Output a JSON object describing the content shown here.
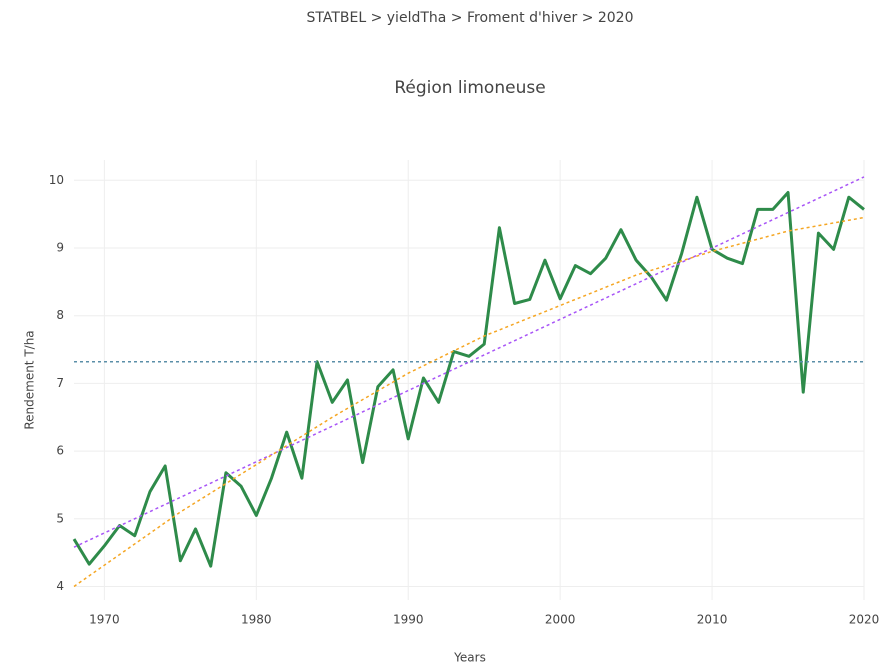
{
  "breadcrumb": "STATBEL > yieldTha > Froment d'hiver > 2020",
  "chart_data": {
    "type": "line",
    "title": "Région limoneuse",
    "x_label": "Years",
    "y_label": "Rendement T/ha",
    "x": [
      1968,
      1969,
      1970,
      1971,
      1972,
      1973,
      1974,
      1975,
      1976,
      1977,
      1978,
      1979,
      1980,
      1981,
      1982,
      1983,
      1984,
      1985,
      1986,
      1987,
      1988,
      1989,
      1990,
      1991,
      1992,
      1993,
      1994,
      1995,
      1996,
      1997,
      1998,
      1999,
      2000,
      2001,
      2002,
      2003,
      2004,
      2005,
      2006,
      2007,
      2008,
      2009,
      2010,
      2011,
      2012,
      2013,
      2014,
      2015,
      2016,
      2017,
      2018,
      2019,
      2020
    ],
    "series": [
      {
        "color": "#2e8b4a",
        "width": 3,
        "dash": false,
        "values": [
          4.7,
          4.33,
          4.6,
          4.9,
          4.75,
          5.4,
          5.78,
          4.38,
          4.85,
          4.3,
          5.68,
          5.48,
          5.05,
          5.6,
          6.28,
          5.6,
          7.32,
          6.72,
          7.05,
          5.83,
          6.95,
          7.2,
          6.18,
          7.08,
          6.72,
          7.47,
          7.4,
          7.58,
          9.3,
          8.18,
          8.24,
          8.82,
          8.25,
          8.74,
          8.62,
          8.85,
          9.27,
          8.82,
          8.57,
          8.23,
          8.92,
          9.75,
          8.98,
          8.85,
          8.77,
          9.57,
          9.57,
          9.82,
          6.87,
          9.22,
          8.98,
          9.75,
          9.57
        ]
      },
      {
        "color": "#5b8fa8",
        "width": 1.5,
        "dash": true,
        "x": [
          1968,
          2020
        ],
        "values": [
          7.32,
          7.32
        ]
      },
      {
        "color": "#a855f7",
        "width": 1.5,
        "dash": true,
        "x": [
          1968,
          2020
        ],
        "values": [
          4.58,
          10.05
        ]
      },
      {
        "color": "#f5a623",
        "width": 1.5,
        "dash": true,
        "x": [
          1968,
          1975,
          1980,
          1985,
          1990,
          1995,
          2000,
          2005,
          2010,
          2015,
          2020
        ],
        "values": [
          4.0,
          5.1,
          5.8,
          6.5,
          7.15,
          7.7,
          8.15,
          8.6,
          8.95,
          9.25,
          9.45
        ]
      }
    ],
    "xlim": [
      1968,
      2020
    ],
    "xticks": [
      1970,
      1980,
      1990,
      2000,
      2010,
      2020
    ],
    "ylim": [
      3.8,
      10.3
    ],
    "yticks": [
      4,
      5,
      6,
      7,
      8,
      9,
      10
    ],
    "grid": true
  }
}
